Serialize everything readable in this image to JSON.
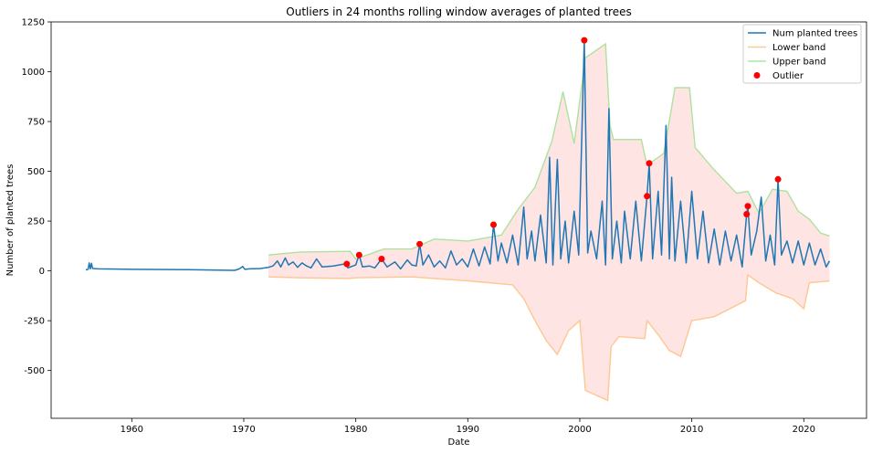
{
  "chart_data": {
    "type": "line",
    "title": "Outliers in 24 months rolling window averages of planted trees",
    "xlabel": "Date",
    "ylabel": "Number of planted trees",
    "xlim": [
      1952.8,
      2025.6
    ],
    "ylim": [
      -740,
      1250
    ],
    "x_ticks": [
      1960,
      1970,
      1980,
      1990,
      2000,
      2010,
      2020
    ],
    "y_ticks": [
      -500,
      -250,
      0,
      250,
      500,
      750,
      1000,
      1250
    ],
    "grid": false,
    "legend_position": "top-right",
    "series": [
      {
        "name": "Num planted trees",
        "color": "#1f77b4",
        "points": [
          [
            1955.9,
            5
          ],
          [
            1956.1,
            8
          ],
          [
            1956.2,
            40
          ],
          [
            1956.3,
            10
          ],
          [
            1956.4,
            38
          ],
          [
            1956.5,
            12
          ],
          [
            1957,
            10
          ],
          [
            1960,
            8
          ],
          [
            1965,
            6
          ],
          [
            1969.2,
            3
          ],
          [
            1969.6,
            10
          ],
          [
            1969.9,
            22
          ],
          [
            1970.1,
            8
          ],
          [
            1970.5,
            10
          ],
          [
            1971.5,
            12
          ],
          [
            1972.2,
            18
          ],
          [
            1972.6,
            25
          ],
          [
            1973,
            50
          ],
          [
            1973.3,
            20
          ],
          [
            1973.7,
            65
          ],
          [
            1974,
            30
          ],
          [
            1974.4,
            45
          ],
          [
            1974.8,
            18
          ],
          [
            1975.2,
            40
          ],
          [
            1975.6,
            25
          ],
          [
            1976,
            15
          ],
          [
            1976.5,
            60
          ],
          [
            1977,
            20
          ],
          [
            1978,
            25
          ],
          [
            1979,
            35
          ],
          [
            1979.3,
            15
          ],
          [
            1980,
            30
          ],
          [
            1980.3,
            80
          ],
          [
            1980.6,
            20
          ],
          [
            1981.2,
            25
          ],
          [
            1981.7,
            15
          ],
          [
            1982.3,
            60
          ],
          [
            1982.8,
            20
          ],
          [
            1983.5,
            45
          ],
          [
            1984,
            10
          ],
          [
            1984.6,
            55
          ],
          [
            1985,
            30
          ],
          [
            1985.4,
            25
          ],
          [
            1985.7,
            135
          ],
          [
            1986,
            30
          ],
          [
            1986.5,
            80
          ],
          [
            1987,
            20
          ],
          [
            1987.5,
            50
          ],
          [
            1988,
            15
          ],
          [
            1988.5,
            100
          ],
          [
            1989,
            30
          ],
          [
            1989.5,
            60
          ],
          [
            1990,
            20
          ],
          [
            1990.5,
            110
          ],
          [
            1991,
            25
          ],
          [
            1991.5,
            120
          ],
          [
            1992,
            35
          ],
          [
            1992.3,
            232
          ],
          [
            1992.7,
            50
          ],
          [
            1993,
            140
          ],
          [
            1993.5,
            40
          ],
          [
            1994,
            180
          ],
          [
            1994.5,
            30
          ],
          [
            1995,
            320
          ],
          [
            1995.3,
            60
          ],
          [
            1995.7,
            200
          ],
          [
            1996,
            50
          ],
          [
            1996.5,
            280
          ],
          [
            1997,
            40
          ],
          [
            1997.3,
            570
          ],
          [
            1997.6,
            30
          ],
          [
            1998,
            560
          ],
          [
            1998.3,
            60
          ],
          [
            1998.7,
            250
          ],
          [
            1999,
            40
          ],
          [
            1999.5,
            300
          ],
          [
            1999.9,
            80
          ],
          [
            2000.4,
            1158
          ],
          [
            2000.7,
            90
          ],
          [
            2001,
            200
          ],
          [
            2001.5,
            60
          ],
          [
            2002,
            350
          ],
          [
            2002.3,
            30
          ],
          [
            2002.6,
            815
          ],
          [
            2002.9,
            60
          ],
          [
            2003.3,
            250
          ],
          [
            2003.7,
            40
          ],
          [
            2004,
            300
          ],
          [
            2004.5,
            60
          ],
          [
            2005,
            350
          ],
          [
            2005.5,
            50
          ],
          [
            2006,
            375
          ],
          [
            2006.2,
            540
          ],
          [
            2006.5,
            60
          ],
          [
            2007,
            400
          ],
          [
            2007.3,
            80
          ],
          [
            2007.7,
            730
          ],
          [
            2008,
            60
          ],
          [
            2008.2,
            470
          ],
          [
            2008.5,
            50
          ],
          [
            2009,
            350
          ],
          [
            2009.5,
            40
          ],
          [
            2010,
            400
          ],
          [
            2010.5,
            60
          ],
          [
            2011,
            300
          ],
          [
            2011.5,
            40
          ],
          [
            2012,
            210
          ],
          [
            2012.5,
            30
          ],
          [
            2013,
            200
          ],
          [
            2013.5,
            50
          ],
          [
            2014,
            180
          ],
          [
            2014.5,
            20
          ],
          [
            2014.9,
            285
          ],
          [
            2015,
            325
          ],
          [
            2015.3,
            80
          ],
          [
            2015.8,
            200
          ],
          [
            2016.2,
            370
          ],
          [
            2016.6,
            50
          ],
          [
            2017,
            180
          ],
          [
            2017.4,
            30
          ],
          [
            2017.7,
            460
          ],
          [
            2018,
            80
          ],
          [
            2018.5,
            150
          ],
          [
            2019,
            40
          ],
          [
            2019.5,
            150
          ],
          [
            2020,
            30
          ],
          [
            2020.5,
            140
          ],
          [
            2021,
            30
          ],
          [
            2021.5,
            110
          ],
          [
            2022,
            20
          ],
          [
            2022.3,
            50
          ]
        ]
      },
      {
        "name": "Lower band",
        "color": "#ffbb78",
        "points": [
          [
            1972.2,
            -30
          ],
          [
            1975,
            -35
          ],
          [
            1979.5,
            -38
          ],
          [
            1980,
            -35
          ],
          [
            1985,
            -30
          ],
          [
            1990,
            -50
          ],
          [
            1994,
            -70
          ],
          [
            1995,
            -140
          ],
          [
            1996,
            -250
          ],
          [
            1997,
            -350
          ],
          [
            1998,
            -420
          ],
          [
            1999,
            -300
          ],
          [
            2000,
            -250
          ],
          [
            2000.5,
            -600
          ],
          [
            2002.5,
            -650
          ],
          [
            2002.8,
            -380
          ],
          [
            2003.5,
            -330
          ],
          [
            2005.8,
            -340
          ],
          [
            2006,
            -250
          ],
          [
            2007,
            -320
          ],
          [
            2008,
            -400
          ],
          [
            2009,
            -430
          ],
          [
            2010,
            -250
          ],
          [
            2012,
            -230
          ],
          [
            2014.8,
            -150
          ],
          [
            2015,
            -20
          ],
          [
            2016,
            -60
          ],
          [
            2017.5,
            -110
          ],
          [
            2019,
            -140
          ],
          [
            2020,
            -190
          ],
          [
            2020.5,
            -60
          ],
          [
            2022.3,
            -50
          ]
        ]
      },
      {
        "name": "Upper band",
        "color": "#98df8a",
        "points": [
          [
            1972.2,
            80
          ],
          [
            1975,
            95
          ],
          [
            1979.5,
            98
          ],
          [
            1980,
            60
          ],
          [
            1982.5,
            110
          ],
          [
            1985,
            110
          ],
          [
            1987,
            160
          ],
          [
            1990,
            150
          ],
          [
            1993,
            180
          ],
          [
            1994.5,
            310
          ],
          [
            1996,
            420
          ],
          [
            1997.5,
            650
          ],
          [
            1998.5,
            900
          ],
          [
            1999.5,
            640
          ],
          [
            2000.5,
            1070
          ],
          [
            2002.3,
            1140
          ],
          [
            2002.7,
            730
          ],
          [
            2003,
            660
          ],
          [
            2005.5,
            660
          ],
          [
            2006,
            530
          ],
          [
            2007.5,
            590
          ],
          [
            2008.5,
            920
          ],
          [
            2009.8,
            920
          ],
          [
            2010.3,
            620
          ],
          [
            2011.8,
            520
          ],
          [
            2014,
            390
          ],
          [
            2015,
            400
          ],
          [
            2016,
            290
          ],
          [
            2017.2,
            410
          ],
          [
            2018.5,
            400
          ],
          [
            2019.5,
            300
          ],
          [
            2020.5,
            260
          ],
          [
            2021.5,
            190
          ],
          [
            2022.3,
            175
          ]
        ]
      }
    ],
    "outliers": {
      "name": "Outlier",
      "color": "#ff0000",
      "points": [
        [
          1979.2,
          35
        ],
        [
          1980.3,
          80
        ],
        [
          1982.3,
          60
        ],
        [
          1985.7,
          135
        ],
        [
          1992.3,
          232
        ],
        [
          2000.4,
          1158
        ],
        [
          2006.0,
          375
        ],
        [
          2006.2,
          540
        ],
        [
          2014.9,
          285
        ],
        [
          2015.0,
          325
        ],
        [
          2017.7,
          460
        ]
      ]
    },
    "band_fill_color": "#ffe4e4"
  }
}
